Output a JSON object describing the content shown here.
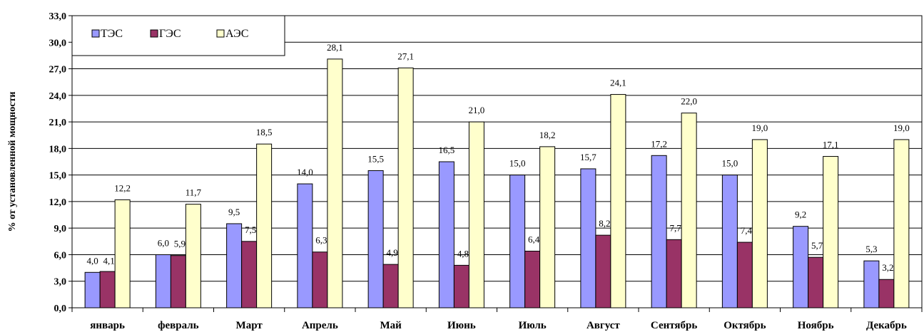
{
  "chart_data": {
    "type": "bar",
    "ylabel": "% от установленной мощности",
    "ylim": [
      0,
      33
    ],
    "ytick_step": 3,
    "ytick_labels": [
      "0,0",
      "3,0",
      "6,0",
      "9,0",
      "12,0",
      "15,0",
      "18,0",
      "21,0",
      "24,0",
      "27,0",
      "30,0",
      "33,0"
    ],
    "grid": true,
    "legend_position": "top-left",
    "categories": [
      "январь",
      "февраль",
      "Март",
      "Апрель",
      "Май",
      "Июнь",
      "Июль",
      "Август",
      "Сентябрь",
      "Октябрь",
      "Ноябрь",
      "Декабрь"
    ],
    "series": [
      {
        "name": "ТЭС",
        "color": "#9999FF",
        "values": [
          4.0,
          6.0,
          9.5,
          14.0,
          15.5,
          16.5,
          15.0,
          15.7,
          17.2,
          15.0,
          9.2,
          5.3
        ],
        "labels": [
          "4,0",
          "6,0",
          "9,5",
          "14,0",
          "15,5",
          "16,5",
          "15,0",
          "15,7",
          "17,2",
          "15,0",
          "9,2",
          "5,3"
        ]
      },
      {
        "name": "ГЭС",
        "color": "#993366",
        "values": [
          4.1,
          5.9,
          7.5,
          6.3,
          4.9,
          4.8,
          6.4,
          8.2,
          7.7,
          7.4,
          5.7,
          3.2
        ],
        "labels": [
          "4,1",
          "5,9",
          "7,5",
          "6,3",
          "4,9",
          "4,8",
          "6,4",
          "8,2",
          "7,7",
          "7,4",
          "5,7",
          "3,2"
        ]
      },
      {
        "name": "АЭС",
        "color": "#FFFFCC",
        "values": [
          12.2,
          11.7,
          18.5,
          28.1,
          27.1,
          21.0,
          18.2,
          24.1,
          22.0,
          19.0,
          17.1,
          19.0
        ],
        "labels": [
          "12,2",
          "11,7",
          "18,5",
          "28,1",
          "27,1",
          "21,0",
          "18,2",
          "24,1",
          "22,0",
          "19,0",
          "17,1",
          "19,0"
        ]
      }
    ]
  }
}
